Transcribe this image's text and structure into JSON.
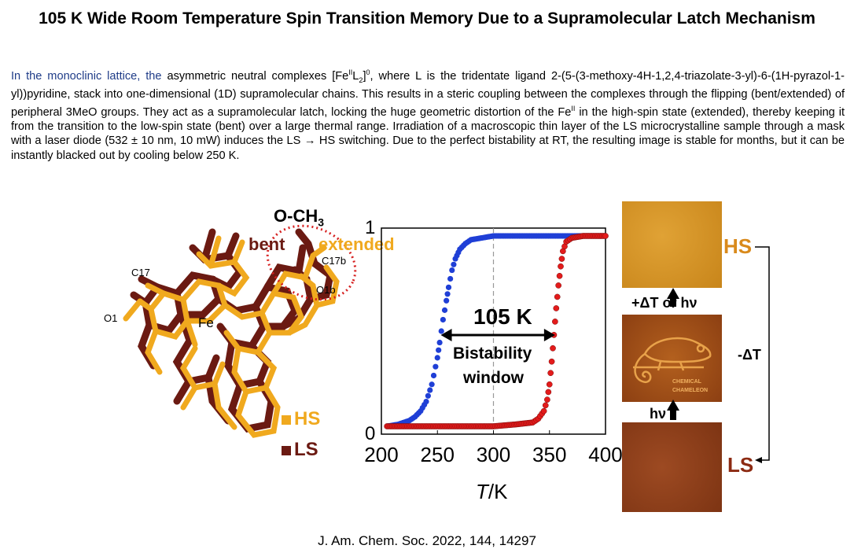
{
  "title": "105 K Wide Room Temperature Spin Transition Memory Due to a Supramolecular Latch Mechanism",
  "abstract": {
    "lead_blue": "In the monoclinic lattice, the",
    "part1": " asymmetric neutral complexes [Fe",
    "sup1": "II",
    "part2": "L",
    "sub1": "2",
    "part3": "]",
    "sup2": "0",
    "part4": ", where L is the tridentate ligand 2-(5-(3-methoxy-4H-1,2,4-triazolate-3-yl)-6-(1H-pyrazol-1-yl))pyridine, stack into one-dimensional (1D) supramolecular chains. This results in a steric coupling between the complexes through the flipping (bent/extended) of peripheral 3MeO groups. They act as a supramolecular latch, locking the huge geometric distortion of the Fe",
    "sup3": "II",
    "part5": " in the high-spin state (extended), thereby keeping it from the transition to the low-spin state (bent) over a large thermal range. Irradiation of a macroscopic thin layer of the LS microcrystalline sample through a mask with a laser diode (532 ± 10 nm, 10 mW) induces the LS → HS switching. Due to the perfect bistability at RT, the resulting image is stable for months, but it can be instantly blacked out by cooling below 250 K."
  },
  "figure": {
    "molecule": {
      "group_label": "O-CH",
      "group_sub": "3",
      "bent_label": "bent",
      "extended_label": "extended",
      "atom_labels": [
        "C17",
        "O1",
        "Fe",
        "C17b",
        "O1b"
      ],
      "legend": [
        {
          "label": "HS",
          "color": "#f0a91e"
        },
        {
          "label": "LS",
          "color": "#6b1a12"
        }
      ]
    },
    "chart_labels": {
      "y_top": "1",
      "y_bottom": "0",
      "xlabel_italic": "T",
      "xlabel_unit": "/K",
      "window_value": "105 K",
      "window_label_1": "Bistability",
      "window_label_2": "window"
    },
    "photos": {
      "hs_label": "HS",
      "ls_label": "LS",
      "heat_label": "+ΔT or hν",
      "light_label": "hν",
      "cool_label": "-ΔT",
      "stamp_1": "CHEMICAL",
      "stamp_2": "CHAMELEON"
    }
  },
  "chart_data": {
    "type": "scatter",
    "x_ticks": [
      200,
      250,
      300,
      350,
      400
    ],
    "xlim": [
      200,
      400
    ],
    "ylim": [
      0,
      1
    ],
    "xlabel": "T/K",
    "dashed_line_x": 300,
    "bistability_width_K": 105,
    "series": [
      {
        "color": "#1f3fd6",
        "x": [
          205,
          215,
          225,
          230,
          235,
          240,
          245,
          250,
          252,
          255,
          258,
          260,
          263,
          266,
          270,
          275,
          280,
          290,
          300,
          320,
          340,
          360,
          380,
          400
        ],
        "y": [
          0.0,
          0.01,
          0.03,
          0.05,
          0.08,
          0.13,
          0.22,
          0.36,
          0.44,
          0.56,
          0.66,
          0.73,
          0.82,
          0.88,
          0.93,
          0.96,
          0.98,
          0.99,
          1.0,
          1.0,
          1.0,
          1.0,
          1.0,
          1.0
        ]
      },
      {
        "color": "#e31b1b",
        "x": [
          205,
          220,
          240,
          260,
          280,
          300,
          320,
          335,
          340,
          345,
          348,
          350,
          352,
          354,
          356,
          358,
          360,
          362,
          365,
          370,
          380,
          400
        ],
        "y": [
          0.0,
          0.0,
          0.0,
          0.0,
          0.0,
          0.0,
          0.01,
          0.02,
          0.04,
          0.08,
          0.14,
          0.22,
          0.34,
          0.48,
          0.62,
          0.74,
          0.84,
          0.92,
          0.97,
          0.99,
          1.0,
          1.0
        ]
      }
    ]
  }
}
